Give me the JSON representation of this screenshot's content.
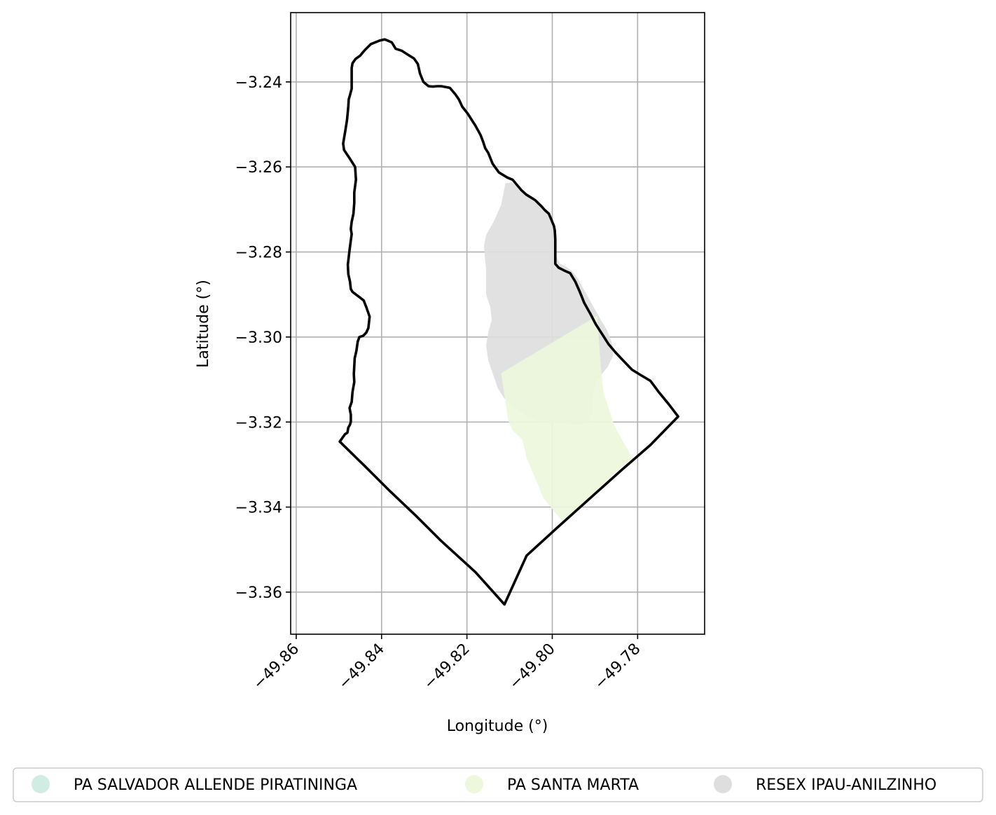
{
  "chart_data": {
    "type": "map",
    "xlabel": "Longitude (°)",
    "ylabel": "Latitude (°)",
    "xlim": [
      -49.8613,
      -49.7643
    ],
    "ylim": [
      -3.3699,
      -3.2237
    ],
    "grid": true,
    "x_ticks": [
      {
        "value": -49.86,
        "label": "−49.86"
      },
      {
        "value": -49.84,
        "label": "−49.84"
      },
      {
        "value": -49.82,
        "label": "−49.82"
      },
      {
        "value": -49.8,
        "label": "−49.80"
      },
      {
        "value": -49.78,
        "label": "−49.78"
      }
    ],
    "y_ticks": [
      {
        "value": -3.24,
        "label": "−3.24"
      },
      {
        "value": -3.26,
        "label": "−3.26"
      },
      {
        "value": -3.28,
        "label": "−3.28"
      },
      {
        "value": -3.3,
        "label": "−3.30"
      },
      {
        "value": -3.32,
        "label": "−3.32"
      },
      {
        "value": -3.34,
        "label": "−3.34"
      },
      {
        "value": -3.36,
        "label": "−3.36"
      }
    ],
    "legend_placement": "bottom",
    "legend": [
      {
        "label": "PA SALVADOR ALLENDE PIRATININGA",
        "color": "#d0ece3"
      },
      {
        "label": "PA SANTA MARTA",
        "color": "#ecf7dc"
      },
      {
        "label": "RESEX IPAU-ANILZINHO",
        "color": "#dedede"
      }
    ],
    "boundary": {
      "color": "#000000",
      "coordinates": [
        [
          -49.8498,
          -3.3246
        ],
        [
          -49.8486,
          -3.3229
        ],
        [
          -49.848,
          -3.3225
        ],
        [
          -49.8478,
          -3.3213
        ],
        [
          -49.8474,
          -3.3206
        ],
        [
          -49.8472,
          -3.3199
        ],
        [
          -49.8472,
          -3.3183
        ],
        [
          -49.8475,
          -3.3167
        ],
        [
          -49.847,
          -3.3153
        ],
        [
          -49.8468,
          -3.3129
        ],
        [
          -49.8464,
          -3.3106
        ],
        [
          -49.8465,
          -3.3087
        ],
        [
          -49.8463,
          -3.305
        ],
        [
          -49.8459,
          -3.3033
        ],
        [
          -49.8456,
          -3.3011
        ],
        [
          -49.8452,
          -3.3
        ],
        [
          -49.8443,
          -3.2997
        ],
        [
          -49.8436,
          -3.299
        ],
        [
          -49.8431,
          -3.2979
        ],
        [
          -49.8429,
          -3.2961
        ],
        [
          -49.8428,
          -3.2952
        ],
        [
          -49.8436,
          -3.2929
        ],
        [
          -49.8442,
          -3.2914
        ],
        [
          -49.8452,
          -3.2906
        ],
        [
          -49.8468,
          -3.2894
        ],
        [
          -49.8472,
          -3.2887
        ],
        [
          -49.8474,
          -3.287
        ],
        [
          -49.8478,
          -3.2852
        ],
        [
          -49.8479,
          -3.283
        ],
        [
          -49.8477,
          -3.2812
        ],
        [
          -49.8475,
          -3.2795
        ],
        [
          -49.8473,
          -3.278
        ],
        [
          -49.847,
          -3.2758
        ],
        [
          -49.8472,
          -3.2746
        ],
        [
          -49.847,
          -3.2729
        ],
        [
          -49.8466,
          -3.271
        ],
        [
          -49.8464,
          -3.2685
        ],
        [
          -49.8464,
          -3.266
        ],
        [
          -49.846,
          -3.263
        ],
        [
          -49.8462,
          -3.26
        ],
        [
          -49.8476,
          -3.2578
        ],
        [
          -49.8488,
          -3.256
        ],
        [
          -49.849,
          -3.2545
        ],
        [
          -49.8485,
          -3.2515
        ],
        [
          -49.8481,
          -3.249
        ],
        [
          -49.8479,
          -3.247
        ],
        [
          -49.8478,
          -3.2457
        ],
        [
          -49.8477,
          -3.2441
        ],
        [
          -49.8474,
          -3.2431
        ],
        [
          -49.847,
          -3.2416
        ],
        [
          -49.847,
          -3.2395
        ],
        [
          -49.847,
          -3.2367
        ],
        [
          -49.8468,
          -3.2356
        ],
        [
          -49.8461,
          -3.2346
        ],
        [
          -49.845,
          -3.2338
        ],
        [
          -49.844,
          -3.2326
        ],
        [
          -49.8425,
          -3.2311
        ],
        [
          -49.8405,
          -3.2303
        ],
        [
          -49.8393,
          -3.23
        ],
        [
          -49.8383,
          -3.2304
        ],
        [
          -49.8376,
          -3.2307
        ],
        [
          -49.8367,
          -3.2322
        ],
        [
          -49.8352,
          -3.2327
        ],
        [
          -49.8343,
          -3.2333
        ],
        [
          -49.8324,
          -3.2345
        ],
        [
          -49.8315,
          -3.2358
        ],
        [
          -49.831,
          -3.238
        ],
        [
          -49.8302,
          -3.24
        ],
        [
          -49.829,
          -3.241
        ],
        [
          -49.828,
          -3.2411
        ],
        [
          -49.827,
          -3.241
        ],
        [
          -49.826,
          -3.241
        ],
        [
          -49.824,
          -3.2414
        ],
        [
          -49.8228,
          -3.2428
        ],
        [
          -49.8219,
          -3.2441
        ],
        [
          -49.8211,
          -3.2458
        ],
        [
          -49.8198,
          -3.2475
        ],
        [
          -49.818,
          -3.2503
        ],
        [
          -49.8168,
          -3.2525
        ],
        [
          -49.8162,
          -3.2541
        ],
        [
          -49.8157,
          -3.2556
        ],
        [
          -49.815,
          -3.2567
        ],
        [
          -49.814,
          -3.2592
        ],
        [
          -49.8125,
          -3.2613
        ],
        [
          -49.8105,
          -3.2625
        ],
        [
          -49.8093,
          -3.263
        ],
        [
          -49.8072,
          -3.2655
        ],
        [
          -49.8061,
          -3.2665
        ],
        [
          -49.804,
          -3.2678
        ],
        [
          -49.8025,
          -3.2693
        ],
        [
          -49.8018,
          -3.2701
        ],
        [
          -49.8008,
          -3.271
        ],
        [
          -49.8003,
          -3.2722
        ],
        [
          -49.7996,
          -3.2739
        ],
        [
          -49.7994,
          -3.275
        ],
        [
          -49.7993,
          -3.277
        ],
        [
          -49.7993,
          -3.2794
        ],
        [
          -49.7993,
          -3.2828
        ],
        [
          -49.7985,
          -3.2837
        ],
        [
          -49.7973,
          -3.2843
        ],
        [
          -49.7958,
          -3.285
        ],
        [
          -49.7946,
          -3.287
        ],
        [
          -49.7935,
          -3.2895
        ],
        [
          -49.7925,
          -3.292
        ],
        [
          -49.7911,
          -3.2945
        ],
        [
          -49.7898,
          -3.297
        ],
        [
          -49.7882,
          -3.2995
        ],
        [
          -49.7868,
          -3.3017
        ],
        [
          -49.7853,
          -3.3035
        ],
        [
          -49.7836,
          -3.3053
        ],
        [
          -49.7813,
          -3.3077
        ],
        [
          -49.7792,
          -3.309
        ],
        [
          -49.777,
          -3.3103
        ],
        [
          -49.775,
          -3.313
        ],
        [
          -49.7727,
          -3.3158
        ],
        [
          -49.7705,
          -3.3187
        ],
        [
          -49.777,
          -3.3254
        ],
        [
          -49.784,
          -3.3315
        ],
        [
          -49.791,
          -3.3378
        ],
        [
          -49.799,
          -3.345
        ],
        [
          -49.806,
          -3.3514
        ],
        [
          -49.8112,
          -3.3629
        ],
        [
          -49.818,
          -3.3553
        ],
        [
          -49.826,
          -3.348
        ],
        [
          -49.832,
          -3.342
        ],
        [
          -49.838,
          -3.3363
        ],
        [
          -49.844,
          -3.3303
        ],
        [
          -49.8498,
          -3.3246
        ]
      ]
    },
    "areas": [
      {
        "name": "RESEX IPAU-ANILZINHO",
        "color": "#dedede",
        "coordinates": [
          [
            -49.811,
            -3.2638
          ],
          [
            -49.8112,
            -3.265
          ],
          [
            -49.812,
            -3.269
          ],
          [
            -49.8138,
            -3.273
          ],
          [
            -49.8155,
            -3.276
          ],
          [
            -49.816,
            -3.2785
          ],
          [
            -49.8158,
            -3.2812
          ],
          [
            -49.8155,
            -3.284
          ],
          [
            -49.8155,
            -3.287
          ],
          [
            -49.8155,
            -3.29
          ],
          [
            -49.8145,
            -3.293
          ],
          [
            -49.8142,
            -3.296
          ],
          [
            -49.815,
            -3.299
          ],
          [
            -49.8155,
            -3.302
          ],
          [
            -49.815,
            -3.3055
          ],
          [
            -49.8138,
            -3.309
          ],
          [
            -49.8128,
            -3.312
          ],
          [
            -49.8112,
            -3.3145
          ],
          [
            -49.809,
            -3.3165
          ],
          [
            -49.806,
            -3.3185
          ],
          [
            -49.8035,
            -3.3197
          ],
          [
            -49.8005,
            -3.3201
          ],
          [
            -49.7976,
            -3.3203
          ],
          [
            -49.795,
            -3.3205
          ],
          [
            -49.7932,
            -3.3205
          ],
          [
            -49.7915,
            -3.32
          ],
          [
            -49.7907,
            -3.3177
          ],
          [
            -49.7906,
            -3.3155
          ],
          [
            -49.7905,
            -3.313
          ],
          [
            -49.7893,
            -3.3098
          ],
          [
            -49.787,
            -3.307
          ],
          [
            -49.7858,
            -3.3045
          ],
          [
            -49.7858,
            -3.3022
          ],
          [
            -49.7865,
            -3.3
          ],
          [
            -49.7874,
            -3.298
          ],
          [
            -49.7886,
            -3.296
          ],
          [
            -49.79,
            -3.2935
          ],
          [
            -49.7914,
            -3.291
          ],
          [
            -49.7928,
            -3.2885
          ],
          [
            -49.794,
            -3.2862
          ],
          [
            -49.7955,
            -3.2844
          ],
          [
            -49.797,
            -3.2833
          ],
          [
            -49.7983,
            -3.2827
          ],
          [
            -49.799,
            -3.281
          ],
          [
            -49.7992,
            -3.278
          ],
          [
            -49.7994,
            -3.2753
          ],
          [
            -49.7998,
            -3.2728
          ],
          [
            -49.8005,
            -3.2712
          ],
          [
            -49.802,
            -3.2695
          ],
          [
            -49.8038,
            -3.2682
          ],
          [
            -49.806,
            -3.2666
          ],
          [
            -49.8075,
            -3.2652
          ],
          [
            -49.8093,
            -3.2637
          ]
        ]
      },
      {
        "name": "PA SANTA MARTA",
        "color": "#ecf7dc",
        "coordinates": [
          [
            -49.812,
            -3.3085
          ],
          [
            -49.7895,
            -3.295
          ],
          [
            -49.7886,
            -3.307
          ],
          [
            -49.788,
            -3.313
          ],
          [
            -49.7854,
            -3.321
          ],
          [
            -49.7812,
            -3.3285
          ],
          [
            -49.786,
            -3.3325
          ],
          [
            -49.79,
            -3.3365
          ],
          [
            -49.7935,
            -3.34
          ],
          [
            -49.7975,
            -3.3435
          ],
          [
            -49.802,
            -3.338
          ],
          [
            -49.806,
            -3.3285
          ],
          [
            -49.807,
            -3.3242
          ],
          [
            -49.8094,
            -3.3218
          ],
          [
            -49.8103,
            -3.3197
          ],
          [
            -49.812,
            -3.3085
          ]
        ]
      }
    ]
  }
}
